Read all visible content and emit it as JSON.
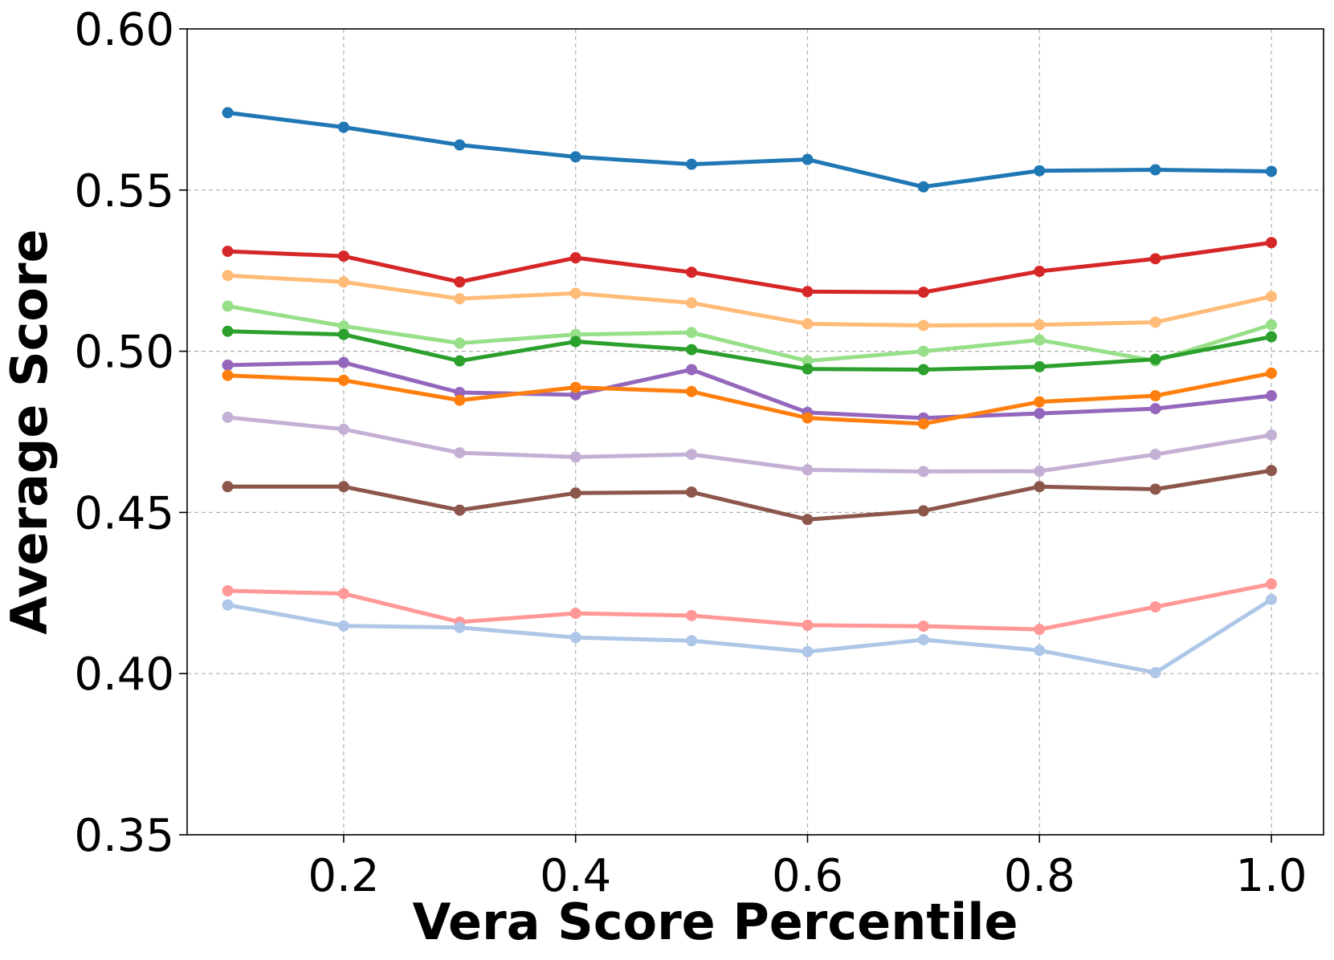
{
  "chart_data": {
    "type": "line",
    "title": "",
    "xlabel": "Vera Score Percentile",
    "ylabel": "Average Score",
    "xlim": [
      0.065,
      1.045
    ],
    "ylim": [
      0.35,
      0.6
    ],
    "grid": true,
    "x": [
      0.1,
      0.2,
      0.3,
      0.4,
      0.5,
      0.6,
      0.7,
      0.8,
      0.9,
      1.0
    ],
    "xticks": [
      0.2,
      0.4,
      0.6,
      0.8,
      1.0
    ],
    "xtick_labels": [
      "0.2",
      "0.4",
      "0.6",
      "0.8",
      "1.0"
    ],
    "yticks": [
      0.35,
      0.4,
      0.45,
      0.5,
      0.55,
      0.6
    ],
    "ytick_labels": [
      "0.35",
      "0.40",
      "0.45",
      "0.50",
      "0.55",
      "0.60"
    ],
    "series": [
      {
        "color": "#1f77b4",
        "values": [
          0.574,
          0.5695,
          0.564,
          0.5603,
          0.558,
          0.5595,
          0.551,
          0.556,
          0.5563,
          0.5558
        ]
      },
      {
        "color": "#d62728",
        "values": [
          0.531,
          0.5295,
          0.5215,
          0.529,
          0.5245,
          0.5185,
          0.5183,
          0.5248,
          0.5287,
          0.5337
        ]
      },
      {
        "color": "#ffbb78",
        "values": [
          0.5235,
          0.5215,
          0.5163,
          0.518,
          0.515,
          0.5085,
          0.508,
          0.5082,
          0.509,
          0.517
        ]
      },
      {
        "color": "#98df8a",
        "values": [
          0.514,
          0.5078,
          0.5025,
          0.5052,
          0.5058,
          0.497,
          0.5,
          0.5035,
          0.497,
          0.5082
        ]
      },
      {
        "color": "#2ca02c",
        "values": [
          0.5062,
          0.5052,
          0.497,
          0.503,
          0.5005,
          0.4945,
          0.4943,
          0.4952,
          0.4975,
          0.5045
        ]
      },
      {
        "color": "#9467bd",
        "values": [
          0.4957,
          0.4965,
          0.4872,
          0.4865,
          0.4943,
          0.481,
          0.4793,
          0.4807,
          0.4822,
          0.4862
        ]
      },
      {
        "color": "#ff7f0e",
        "values": [
          0.4925,
          0.491,
          0.4848,
          0.4888,
          0.4875,
          0.4793,
          0.4775,
          0.4843,
          0.4862,
          0.4932
        ]
      },
      {
        "color": "#c5b0d5",
        "values": [
          0.4795,
          0.4758,
          0.4685,
          0.4672,
          0.468,
          0.4632,
          0.4627,
          0.4628,
          0.468,
          0.474
        ]
      },
      {
        "color": "#8c564b",
        "values": [
          0.458,
          0.458,
          0.4507,
          0.456,
          0.4563,
          0.4478,
          0.4505,
          0.458,
          0.4572,
          0.463
        ]
      },
      {
        "color": "#ff9896",
        "values": [
          0.4257,
          0.4248,
          0.416,
          0.4187,
          0.418,
          0.415,
          0.4147,
          0.4137,
          0.4207,
          0.4278
        ]
      },
      {
        "color": "#aec7e8",
        "values": [
          0.4213,
          0.4148,
          0.4143,
          0.4112,
          0.4102,
          0.4068,
          0.4105,
          0.4072,
          0.4003,
          0.423
        ]
      }
    ]
  }
}
